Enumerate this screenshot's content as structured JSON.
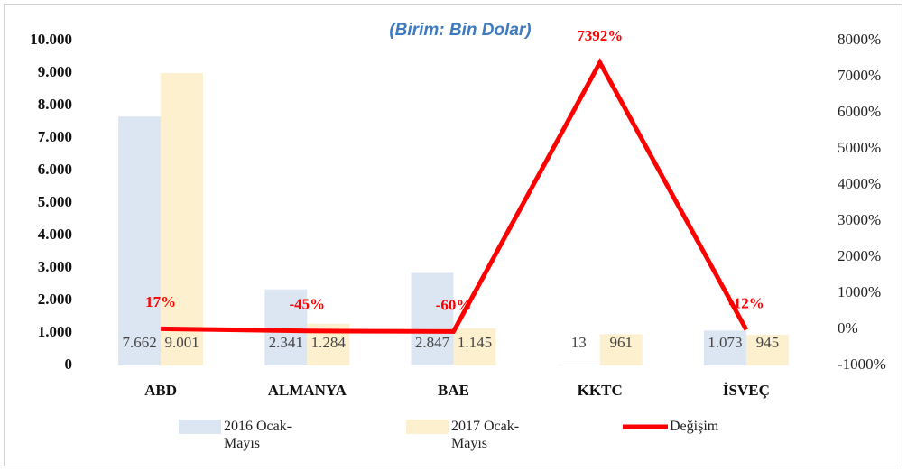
{
  "chart_data": {
    "type": "bar-line",
    "title": "(Birim: Bin Dolar)",
    "categories": [
      "ABD",
      "ALMANYA",
      "BAE",
      "KKTC",
      "İSVEÇ"
    ],
    "series": [
      {
        "name": "2016 Ocak-Mayıs",
        "color": "#dce6f2",
        "values": [
          7662,
          2341,
          2847,
          13,
          1073
        ],
        "value_labels": [
          "7.662",
          "2.341",
          "2.847",
          "13",
          "1.073"
        ]
      },
      {
        "name": "2017 Ocak-Mayıs",
        "color": "#fdf0cf",
        "values": [
          9001,
          1284,
          1145,
          961,
          945
        ],
        "value_labels": [
          "9.001",
          "1.284",
          "1.145",
          "961",
          "945"
        ]
      },
      {
        "name": "Değişim",
        "color": "#ff0000",
        "axis": "y2",
        "values": [
          17,
          -45,
          -60,
          7392,
          -12
        ],
        "value_labels": [
          "17%",
          "-45%",
          "-60%",
          "7392%",
          "-12%"
        ]
      }
    ],
    "ylim": [
      0,
      10000
    ],
    "yticks": [
      0,
      {
        "value": 1000,
        "label": "1.000"
      },
      {
        "value": 2000,
        "label": "2.000"
      },
      {
        "value": 3000,
        "label": "3.000"
      },
      {
        "value": 4000,
        "label": "4.000"
      },
      {
        "value": 5000,
        "label": "5.000"
      },
      {
        "value": 6000,
        "label": "6.000"
      },
      {
        "value": 7000,
        "label": "7.000"
      },
      {
        "value": 8000,
        "label": "8.000"
      },
      {
        "value": 9000,
        "label": "9.000"
      },
      {
        "value": 10000,
        "label": "10.000"
      }
    ],
    "y2lim": [
      -1000,
      8000
    ],
    "y2ticks": [
      {
        "value": -1000,
        "label": "-1000%"
      },
      {
        "value": 0,
        "label": "0%"
      },
      {
        "value": 1000,
        "label": "1000%"
      },
      {
        "value": 2000,
        "label": "2000%"
      },
      {
        "value": 3000,
        "label": "3000%"
      },
      {
        "value": 4000,
        "label": "4000%"
      },
      {
        "value": 5000,
        "label": "5000%"
      },
      {
        "value": 6000,
        "label": "6000%"
      },
      {
        "value": 7000,
        "label": "7000%"
      },
      {
        "value": 8000,
        "label": "8000%"
      }
    ],
    "grid": false
  }
}
